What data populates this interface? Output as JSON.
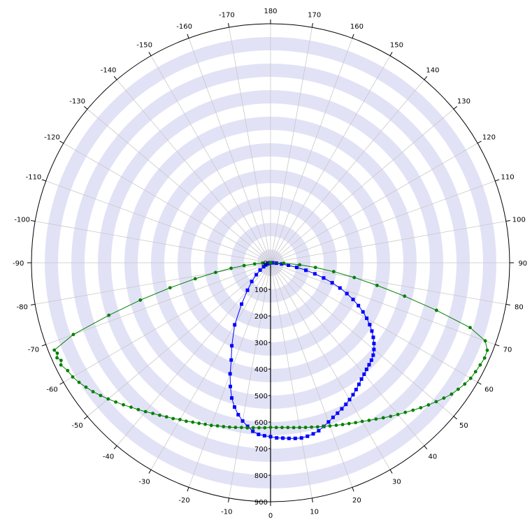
{
  "chart_data": {
    "type": "polar-line",
    "title": "",
    "angle_ticks": [
      "180",
      "170",
      "160",
      "150",
      "140",
      "130",
      "120",
      "110",
      "100",
      "90",
      "80",
      "70",
      "60",
      "50",
      "40",
      "30",
      "20",
      "10",
      "0",
      "-10",
      "-20",
      "-30",
      "-40",
      "-50",
      "-60",
      "-70",
      "-80",
      "-90",
      "-100",
      "-110",
      "-120",
      "-130",
      "-140",
      "-150",
      "-160",
      "-170"
    ],
    "angle_tick_values": [
      180,
      170,
      160,
      150,
      140,
      130,
      120,
      110,
      100,
      90,
      80,
      70,
      60,
      50,
      40,
      30,
      20,
      10,
      0,
      -10,
      -20,
      -30,
      -40,
      -50,
      -60,
      -70,
      -80,
      -90,
      -100,
      -110,
      -120,
      -130,
      -140,
      -150,
      -160,
      -170
    ],
    "radial_ticks": [
      "0",
      "100",
      "200",
      "300",
      "400",
      "500",
      "600",
      "700",
      "800",
      "900"
    ],
    "rlim": [
      0,
      900
    ],
    "angle_zero": "bottom",
    "angle_direction": "counterclockwise",
    "grid": true,
    "colors": {
      "band": "#e2e2f6",
      "grid": "#c8c8c8",
      "axis": "#000000",
      "series_blue": "#0000ff",
      "series_green": "#008000"
    },
    "series": [
      {
        "color": "#0000ff",
        "marker": "square",
        "points": [
          [
            -90,
            0
          ],
          [
            -85,
            2
          ],
          [
            -80,
            5
          ],
          [
            -75,
            8
          ],
          [
            -70,
            13
          ],
          [
            -65,
            20
          ],
          [
            -60,
            30
          ],
          [
            -55,
            48
          ],
          [
            -50,
            70
          ],
          [
            -45,
            100
          ],
          [
            -40,
            135
          ],
          [
            -35,
            190
          ],
          [
            -30,
            270
          ],
          [
            -25,
            345
          ],
          [
            -22,
            395
          ],
          [
            -20,
            445
          ],
          [
            -18,
            490
          ],
          [
            -16,
            530
          ],
          [
            -14,
            560
          ],
          [
            -12,
            585
          ],
          [
            -10,
            605
          ],
          [
            -8,
            622
          ],
          [
            -6,
            638
          ],
          [
            -4,
            648
          ],
          [
            -2,
            652
          ],
          [
            0,
            655
          ],
          [
            2,
            660
          ],
          [
            4,
            662
          ],
          [
            6,
            665
          ],
          [
            8,
            668
          ],
          [
            10,
            670
          ],
          [
            12,
            668
          ],
          [
            14,
            664
          ],
          [
            16,
            658
          ],
          [
            18,
            648
          ],
          [
            20,
            638
          ],
          [
            22,
            628
          ],
          [
            24,
            620
          ],
          [
            26,
            612
          ],
          [
            28,
            604
          ],
          [
            30,
            595
          ],
          [
            32,
            586
          ],
          [
            34,
            576
          ],
          [
            36,
            566
          ],
          [
            38,
            556
          ],
          [
            40,
            548
          ],
          [
            42,
            540
          ],
          [
            44,
            534
          ],
          [
            46,
            528
          ],
          [
            48,
            520
          ],
          [
            50,
            508
          ],
          [
            52,
            494
          ],
          [
            54,
            478
          ],
          [
            56,
            460
          ],
          [
            58,
            440
          ],
          [
            60,
            418
          ],
          [
            62,
            394
          ],
          [
            64,
            368
          ],
          [
            66,
            340
          ],
          [
            68,
            310
          ],
          [
            70,
            278
          ],
          [
            72,
            244
          ],
          [
            74,
            208
          ],
          [
            76,
            172
          ],
          [
            78,
            136
          ],
          [
            80,
            100
          ],
          [
            82,
            68
          ],
          [
            84,
            42
          ],
          [
            86,
            22
          ],
          [
            88,
            8
          ],
          [
            90,
            0
          ]
        ]
      },
      {
        "color": "#008000",
        "marker": "circle",
        "points": [
          [
            -90,
            0
          ],
          [
            -88,
            30
          ],
          [
            -86,
            60
          ],
          [
            -84,
            100
          ],
          [
            -82,
            150
          ],
          [
            -80,
            210
          ],
          [
            -78,
            290
          ],
          [
            -76,
            390
          ],
          [
            -74,
            510
          ],
          [
            -72,
            640
          ],
          [
            -70,
            790
          ],
          [
            -68,
            878
          ],
          [
            -67,
            872
          ],
          [
            -66,
            880
          ],
          [
            -65,
            870
          ],
          [
            -64,
            878
          ],
          [
            -62,
            865
          ],
          [
            -60,
            860
          ],
          [
            -58,
            850
          ],
          [
            -56,
            838
          ],
          [
            -54,
            826
          ],
          [
            -52,
            812
          ],
          [
            -50,
            798
          ],
          [
            -48,
            784
          ],
          [
            -46,
            770
          ],
          [
            -44,
            756
          ],
          [
            -42,
            744
          ],
          [
            -40,
            732
          ],
          [
            -38,
            720
          ],
          [
            -36,
            710
          ],
          [
            -34,
            700
          ],
          [
            -32,
            692
          ],
          [
            -30,
            682
          ],
          [
            -28,
            676
          ],
          [
            -26,
            668
          ],
          [
            -24,
            662
          ],
          [
            -22,
            656
          ],
          [
            -20,
            652
          ],
          [
            -18,
            646
          ],
          [
            -16,
            642
          ],
          [
            -14,
            638
          ],
          [
            -12,
            634
          ],
          [
            -10,
            630
          ],
          [
            -8,
            628
          ],
          [
            -6,
            625
          ],
          [
            -4,
            623
          ],
          [
            -2,
            622
          ],
          [
            0,
            620
          ],
          [
            2,
            621
          ],
          [
            4,
            622
          ],
          [
            6,
            624
          ],
          [
            8,
            627
          ],
          [
            10,
            630
          ],
          [
            12,
            634
          ],
          [
            14,
            638
          ],
          [
            16,
            643
          ],
          [
            18,
            648
          ],
          [
            20,
            654
          ],
          [
            22,
            660
          ],
          [
            24,
            667
          ],
          [
            26,
            674
          ],
          [
            28,
            682
          ],
          [
            30,
            690
          ],
          [
            32,
            700
          ],
          [
            34,
            710
          ],
          [
            36,
            722
          ],
          [
            38,
            734
          ],
          [
            40,
            746
          ],
          [
            42,
            758
          ],
          [
            44,
            772
          ],
          [
            46,
            786
          ],
          [
            48,
            800
          ],
          [
            50,
            814
          ],
          [
            52,
            828
          ],
          [
            54,
            842
          ],
          [
            56,
            852
          ],
          [
            58,
            862
          ],
          [
            60,
            870
          ],
          [
            62,
            874
          ],
          [
            64,
            878
          ],
          [
            66,
            882
          ],
          [
            68,
            880
          ],
          [
            70,
            860
          ],
          [
            72,
            790
          ],
          [
            74,
            650
          ],
          [
            76,
            520
          ],
          [
            78,
            410
          ],
          [
            80,
            320
          ],
          [
            82,
            240
          ],
          [
            84,
            170
          ],
          [
            86,
            110
          ],
          [
            88,
            50
          ],
          [
            90,
            0
          ]
        ]
      }
    ]
  }
}
